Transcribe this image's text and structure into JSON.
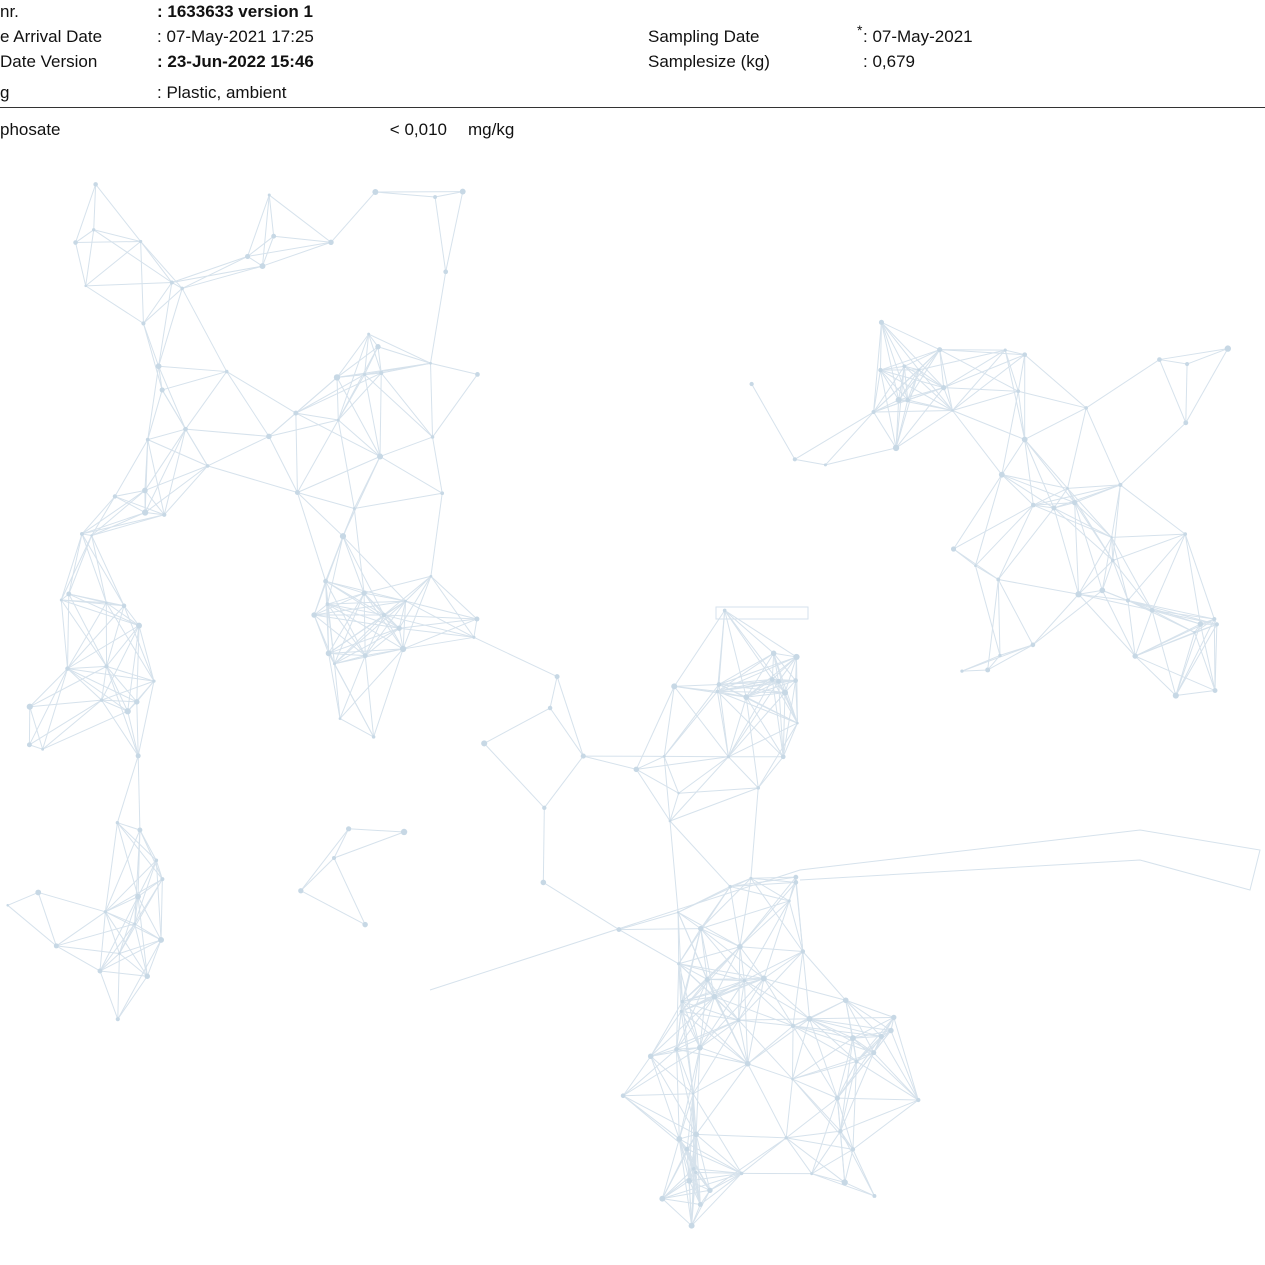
{
  "header": {
    "fields": [
      {
        "label": "nr.",
        "value": ": 1633633 version 1"
      },
      {
        "label": "e Arrival Date",
        "value": ": 07-May-2021 17:25"
      },
      {
        "label": "Date Version",
        "value": ": 23-Jun-2022 15:46"
      },
      {
        "label": "g",
        "value": ": Plastic, ambient"
      }
    ],
    "sampling": [
      {
        "label": "Sampling Date",
        "marker": "*",
        "value": ": 07-May-2021"
      },
      {
        "label": "Samplesize (kg)",
        "value": ": 0,679"
      }
    ]
  },
  "results": {
    "rows": [
      {
        "analyte": "phosate",
        "value": "< 0,010",
        "unit": "mg/kg"
      }
    ]
  }
}
